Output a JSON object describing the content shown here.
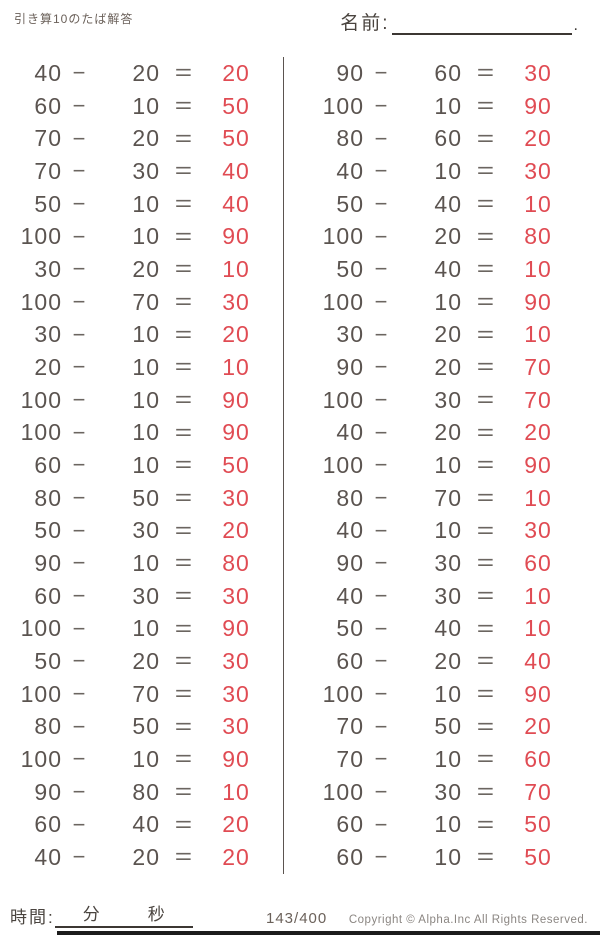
{
  "header": {
    "title": "引き算10のたば解答",
    "name_label": "名前:",
    "name_line_period": "."
  },
  "operators": {
    "minus": "−",
    "equals": "="
  },
  "columns": [
    {
      "problems": [
        {
          "minuend": 40,
          "subtrahend": 20,
          "difference": 20
        },
        {
          "minuend": 60,
          "subtrahend": 10,
          "difference": 50
        },
        {
          "minuend": 70,
          "subtrahend": 20,
          "difference": 50
        },
        {
          "minuend": 70,
          "subtrahend": 30,
          "difference": 40
        },
        {
          "minuend": 50,
          "subtrahend": 10,
          "difference": 40
        },
        {
          "minuend": 100,
          "subtrahend": 10,
          "difference": 90
        },
        {
          "minuend": 30,
          "subtrahend": 20,
          "difference": 10
        },
        {
          "minuend": 100,
          "subtrahend": 70,
          "difference": 30
        },
        {
          "minuend": 30,
          "subtrahend": 10,
          "difference": 20
        },
        {
          "minuend": 20,
          "subtrahend": 10,
          "difference": 10
        },
        {
          "minuend": 100,
          "subtrahend": 10,
          "difference": 90
        },
        {
          "minuend": 100,
          "subtrahend": 10,
          "difference": 90
        },
        {
          "minuend": 60,
          "subtrahend": 10,
          "difference": 50
        },
        {
          "minuend": 80,
          "subtrahend": 50,
          "difference": 30
        },
        {
          "minuend": 50,
          "subtrahend": 30,
          "difference": 20
        },
        {
          "minuend": 90,
          "subtrahend": 10,
          "difference": 80
        },
        {
          "minuend": 60,
          "subtrahend": 30,
          "difference": 30
        },
        {
          "minuend": 100,
          "subtrahend": 10,
          "difference": 90
        },
        {
          "minuend": 50,
          "subtrahend": 20,
          "difference": 30
        },
        {
          "minuend": 100,
          "subtrahend": 70,
          "difference": 30
        },
        {
          "minuend": 80,
          "subtrahend": 50,
          "difference": 30
        },
        {
          "minuend": 100,
          "subtrahend": 10,
          "difference": 90
        },
        {
          "minuend": 90,
          "subtrahend": 80,
          "difference": 10
        },
        {
          "minuend": 60,
          "subtrahend": 40,
          "difference": 20
        },
        {
          "minuend": 40,
          "subtrahend": 20,
          "difference": 20
        }
      ]
    },
    {
      "problems": [
        {
          "minuend": 90,
          "subtrahend": 60,
          "difference": 30
        },
        {
          "minuend": 100,
          "subtrahend": 10,
          "difference": 90
        },
        {
          "minuend": 80,
          "subtrahend": 60,
          "difference": 20
        },
        {
          "minuend": 40,
          "subtrahend": 10,
          "difference": 30
        },
        {
          "minuend": 50,
          "subtrahend": 40,
          "difference": 10
        },
        {
          "minuend": 100,
          "subtrahend": 20,
          "difference": 80
        },
        {
          "minuend": 50,
          "subtrahend": 40,
          "difference": 10
        },
        {
          "minuend": 100,
          "subtrahend": 10,
          "difference": 90
        },
        {
          "minuend": 30,
          "subtrahend": 20,
          "difference": 10
        },
        {
          "minuend": 90,
          "subtrahend": 20,
          "difference": 70
        },
        {
          "minuend": 100,
          "subtrahend": 30,
          "difference": 70
        },
        {
          "minuend": 40,
          "subtrahend": 20,
          "difference": 20
        },
        {
          "minuend": 100,
          "subtrahend": 10,
          "difference": 90
        },
        {
          "minuend": 80,
          "subtrahend": 70,
          "difference": 10
        },
        {
          "minuend": 40,
          "subtrahend": 10,
          "difference": 30
        },
        {
          "minuend": 90,
          "subtrahend": 30,
          "difference": 60
        },
        {
          "minuend": 40,
          "subtrahend": 30,
          "difference": 10
        },
        {
          "minuend": 50,
          "subtrahend": 40,
          "difference": 10
        },
        {
          "minuend": 60,
          "subtrahend": 20,
          "difference": 40
        },
        {
          "minuend": 100,
          "subtrahend": 10,
          "difference": 90
        },
        {
          "minuend": 70,
          "subtrahend": 50,
          "difference": 20
        },
        {
          "minuend": 70,
          "subtrahend": 10,
          "difference": 60
        },
        {
          "minuend": 100,
          "subtrahend": 30,
          "difference": 70
        },
        {
          "minuend": 60,
          "subtrahend": 10,
          "difference": 50
        },
        {
          "minuend": 60,
          "subtrahend": 10,
          "difference": 50
        }
      ]
    }
  ],
  "footer": {
    "time_label": "時間:",
    "minutes_label": "分",
    "seconds_label": "秒",
    "page_number": "143/400",
    "copyright": "Copyright ©  Alpha.Inc All Rights Reserved."
  },
  "colors": {
    "ink": "#5b5450",
    "answer_red": "#e04b53",
    "line_dark": "#3c3733",
    "copyright_gray": "#8b8682"
  }
}
